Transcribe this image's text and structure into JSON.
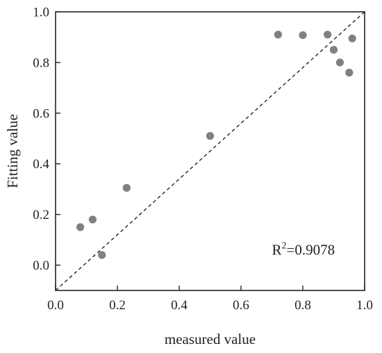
{
  "chart_data": {
    "type": "scatter",
    "xlabel": "measured value",
    "ylabel": "Fitting value",
    "xlim": [
      0.0,
      1.0
    ],
    "ylim": [
      -0.1,
      1.0
    ],
    "x_ticks": [
      0.0,
      0.2,
      0.4,
      0.6,
      0.8,
      1.0
    ],
    "y_ticks": [
      0.0,
      0.2,
      0.4,
      0.6,
      0.8,
      1.0
    ],
    "x_tick_labels": [
      "0.0",
      "0.2",
      "0.4",
      "0.6",
      "0.8",
      "1.0"
    ],
    "y_tick_labels": [
      "0.0",
      "0.2",
      "0.4",
      "0.6",
      "0.8",
      "1.0"
    ],
    "grid": false,
    "series": [
      {
        "points": [
          {
            "x": 0.08,
            "y": 0.15
          },
          {
            "x": 0.12,
            "y": 0.18
          },
          {
            "x": 0.15,
            "y": 0.04
          },
          {
            "x": 0.23,
            "y": 0.305
          },
          {
            "x": 0.5,
            "y": 0.51
          },
          {
            "x": 0.72,
            "y": 0.91
          },
          {
            "x": 0.8,
            "y": 0.908
          },
          {
            "x": 0.88,
            "y": 0.91
          },
          {
            "x": 0.9,
            "y": 0.85
          },
          {
            "x": 0.92,
            "y": 0.8
          },
          {
            "x": 0.95,
            "y": 0.76
          },
          {
            "x": 0.96,
            "y": 0.895
          }
        ],
        "color": "#808080"
      }
    ],
    "reference_line": {
      "from": [
        0.0,
        -0.1
      ],
      "to": [
        1.0,
        1.0
      ],
      "style": "dashed",
      "color": "#222222"
    },
    "annotation": {
      "base": "R",
      "superscript": "2",
      "value_text": "=0.9078",
      "x": 0.7,
      "y": 0.06
    }
  }
}
